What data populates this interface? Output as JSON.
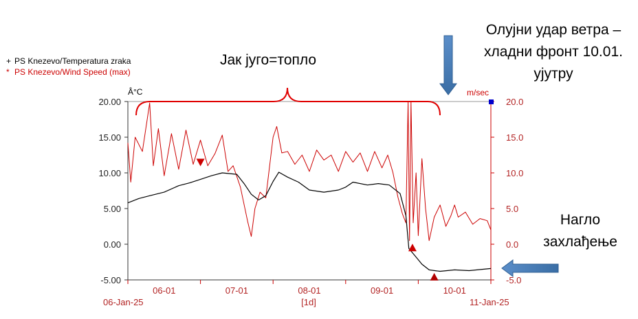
{
  "chart_data": {
    "type": "line",
    "legend": [
      {
        "marker": "+",
        "label": "PS Knezevo/Temperatura zraka",
        "color": "#000000"
      },
      {
        "marker": "*",
        "label": "PS Knezevo/Wind Speed (max)",
        "color": "#cc0000"
      }
    ],
    "left_unit": "Â°C",
    "right_unit": "m/sec",
    "left_ticks": [
      "20.00",
      "15.00",
      "10.00",
      "5.00",
      "0.00",
      "-5.00"
    ],
    "right_ticks": [
      "20.0",
      "15.0",
      "10.0",
      "5.0",
      "0.0",
      "-5.0"
    ],
    "y_range": [
      -5,
      20
    ],
    "x_ticks": [
      "06-01",
      "07-01",
      "08-01",
      "09-01",
      "10-01"
    ],
    "x_start_label": "06-Jan-25",
    "x_end_label": "11-Jan-25",
    "x_interval_label": "[1d]",
    "x_range_days": [
      6.0,
      11.0
    ],
    "series": [
      {
        "name": "PS Knezevo/Temperatura zraka",
        "color": "#000000",
        "points": [
          [
            6.0,
            5.8
          ],
          [
            6.15,
            6.4
          ],
          [
            6.3,
            6.8
          ],
          [
            6.5,
            7.3
          ],
          [
            6.7,
            8.2
          ],
          [
            6.85,
            8.6
          ],
          [
            7.0,
            9.1
          ],
          [
            7.15,
            9.6
          ],
          [
            7.3,
            10.0
          ],
          [
            7.5,
            9.8
          ],
          [
            7.6,
            8.5
          ],
          [
            7.7,
            7.0
          ],
          [
            7.8,
            6.2
          ],
          [
            7.9,
            6.8
          ],
          [
            8.0,
            8.8
          ],
          [
            8.08,
            10.1
          ],
          [
            8.2,
            9.4
          ],
          [
            8.35,
            8.7
          ],
          [
            8.5,
            7.6
          ],
          [
            8.7,
            7.3
          ],
          [
            8.9,
            7.6
          ],
          [
            9.0,
            8.0
          ],
          [
            9.1,
            8.7
          ],
          [
            9.3,
            8.3
          ],
          [
            9.45,
            8.5
          ],
          [
            9.6,
            8.3
          ],
          [
            9.75,
            7.1
          ],
          [
            9.83,
            4.0
          ],
          [
            9.87,
            -0.6
          ],
          [
            9.92,
            -1.2
          ],
          [
            9.97,
            -1.8
          ],
          [
            10.05,
            -2.8
          ],
          [
            10.15,
            -3.6
          ],
          [
            10.3,
            -3.8
          ],
          [
            10.5,
            -3.6
          ],
          [
            10.7,
            -3.7
          ],
          [
            11.0,
            -3.4
          ]
        ]
      },
      {
        "name": "PS Knezevo/Wind Speed (max)",
        "color": "#cc0000",
        "points": [
          [
            6.0,
            14.2
          ],
          [
            6.04,
            8.7
          ],
          [
            6.1,
            15.0
          ],
          [
            6.2,
            13.0
          ],
          [
            6.3,
            19.8
          ],
          [
            6.35,
            11.0
          ],
          [
            6.42,
            16.2
          ],
          [
            6.5,
            9.6
          ],
          [
            6.6,
            15.5
          ],
          [
            6.7,
            10.5
          ],
          [
            6.8,
            16.0
          ],
          [
            6.9,
            11.2
          ],
          [
            7.0,
            14.6
          ],
          [
            7.1,
            11.0
          ],
          [
            7.2,
            12.7
          ],
          [
            7.3,
            15.3
          ],
          [
            7.38,
            10.2
          ],
          [
            7.45,
            11.0
          ],
          [
            7.55,
            8.0
          ],
          [
            7.65,
            3.2
          ],
          [
            7.7,
            1.1
          ],
          [
            7.75,
            5.0
          ],
          [
            7.82,
            7.3
          ],
          [
            7.9,
            6.5
          ],
          [
            8.0,
            15.0
          ],
          [
            8.05,
            16.5
          ],
          [
            8.12,
            12.8
          ],
          [
            8.2,
            13.0
          ],
          [
            8.3,
            11.2
          ],
          [
            8.4,
            12.5
          ],
          [
            8.5,
            10.2
          ],
          [
            8.6,
            13.2
          ],
          [
            8.7,
            11.8
          ],
          [
            8.8,
            12.5
          ],
          [
            8.9,
            10.2
          ],
          [
            9.0,
            13.0
          ],
          [
            9.1,
            11.5
          ],
          [
            9.2,
            12.8
          ],
          [
            9.3,
            10.2
          ],
          [
            9.4,
            13.0
          ],
          [
            9.5,
            10.7
          ],
          [
            9.58,
            12.5
          ],
          [
            9.65,
            10.1
          ],
          [
            9.72,
            6.6
          ],
          [
            9.78,
            4.3
          ],
          [
            9.83,
            3.0
          ],
          [
            9.86,
            20.0
          ],
          [
            9.88,
            0.5
          ],
          [
            9.9,
            20.0
          ],
          [
            9.93,
            3.0
          ],
          [
            9.97,
            10.0
          ],
          [
            10.0,
            1.2
          ],
          [
            10.05,
            12.0
          ],
          [
            10.1,
            5.0
          ],
          [
            10.15,
            0.5
          ],
          [
            10.22,
            3.8
          ],
          [
            10.3,
            5.5
          ],
          [
            10.38,
            2.5
          ],
          [
            10.45,
            4.0
          ],
          [
            10.5,
            5.5
          ],
          [
            10.55,
            3.8
          ],
          [
            10.65,
            4.5
          ],
          [
            10.75,
            2.8
          ],
          [
            10.85,
            3.6
          ],
          [
            10.95,
            3.3
          ],
          [
            11.0,
            2.0
          ]
        ]
      }
    ],
    "markers": [
      {
        "x": 7.0,
        "y": 11.5,
        "shape": "triangle-down",
        "color": "#cc0000"
      },
      {
        "x": 9.92,
        "y": -0.5,
        "shape": "triangle-up",
        "color": "#cc0000"
      },
      {
        "x": 10.22,
        "y": -4.6,
        "shape": "triangle-up",
        "color": "#b00000"
      },
      {
        "x": 11.0,
        "y": 20.0,
        "shape": "square",
        "color": "#0000cc"
      }
    ],
    "annotations": {
      "brace_label": "Јак југо=топло",
      "gust_lines": [
        "Олујни удар ветра –",
        "хладни фронт 10.01.",
        "ујутру"
      ],
      "cooling_lines": [
        "Нагло",
        "захлађење"
      ]
    }
  }
}
